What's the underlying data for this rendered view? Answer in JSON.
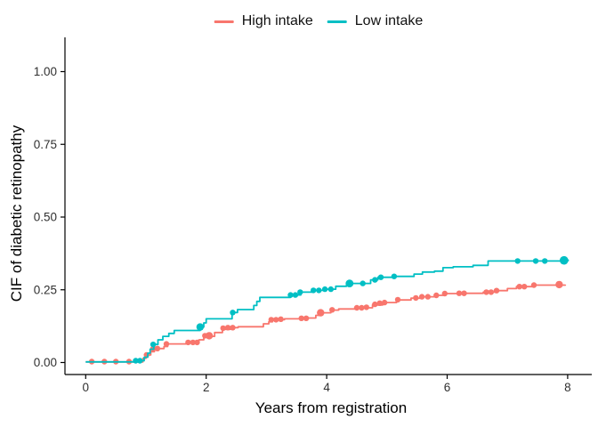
{
  "chart_data": {
    "type": "line",
    "subtype": "step-cif-curves",
    "title": "",
    "xlabel": "Years from registration",
    "ylabel": "CIF of diabetic retinopathy",
    "xlim": [
      0,
      8
    ],
    "ylim": [
      0,
      1
    ],
    "grid": false,
    "xticks": {
      "values": [
        0,
        2,
        4,
        6,
        8
      ],
      "labels": [
        "0",
        "2",
        "4",
        "6",
        "8"
      ]
    },
    "yticks": {
      "values": [
        0,
        0.25,
        0.5,
        0.75,
        1.0
      ],
      "labels": [
        "0.00",
        "0.25",
        "0.50",
        "0.75",
        "1.00"
      ]
    },
    "legend": {
      "position": "top",
      "entries": [
        {
          "label": "High intake",
          "color": "#F8766D"
        },
        {
          "label": "Low intake",
          "color": "#00BFC4"
        }
      ]
    },
    "axis_color": "#000000",
    "series": [
      {
        "name": "High intake",
        "color": "#F8766D",
        "steps": [
          [
            0.0,
            0.002
          ],
          [
            0.95,
            0.014
          ],
          [
            1.0,
            0.026
          ],
          [
            1.08,
            0.037
          ],
          [
            1.14,
            0.048
          ],
          [
            1.3,
            0.055
          ],
          [
            1.36,
            0.064
          ],
          [
            1.7,
            0.069
          ],
          [
            1.88,
            0.078
          ],
          [
            1.96,
            0.09
          ],
          [
            2.14,
            0.103
          ],
          [
            2.27,
            0.114
          ],
          [
            2.4,
            0.12
          ],
          [
            2.53,
            0.123
          ],
          [
            2.95,
            0.133
          ],
          [
            3.04,
            0.14
          ],
          [
            3.1,
            0.147
          ],
          [
            3.3,
            0.15
          ],
          [
            3.68,
            0.153
          ],
          [
            3.82,
            0.162
          ],
          [
            3.89,
            0.171
          ],
          [
            4.07,
            0.18
          ],
          [
            4.2,
            0.184
          ],
          [
            4.48,
            0.188
          ],
          [
            4.76,
            0.198
          ],
          [
            4.93,
            0.206
          ],
          [
            5.16,
            0.215
          ],
          [
            5.4,
            0.221
          ],
          [
            5.55,
            0.226
          ],
          [
            5.8,
            0.231
          ],
          [
            5.95,
            0.237
          ],
          [
            6.2,
            0.238
          ],
          [
            6.6,
            0.242
          ],
          [
            6.8,
            0.247
          ],
          [
            7.0,
            0.254
          ],
          [
            7.15,
            0.261
          ],
          [
            7.42,
            0.266
          ],
          [
            7.96,
            0.268
          ]
        ],
        "markers": [
          [
            0.1,
            0.003
          ],
          [
            0.31,
            0.003
          ],
          [
            0.5,
            0.003
          ],
          [
            0.72,
            0.003
          ],
          [
            1.01,
            0.026
          ],
          [
            1.12,
            0.048
          ],
          [
            1.19,
            0.048
          ],
          [
            1.34,
            0.064
          ],
          [
            1.7,
            0.069
          ],
          [
            1.78,
            0.069
          ],
          [
            1.85,
            0.069
          ],
          [
            1.98,
            0.092
          ],
          [
            2.05,
            0.092,
            4.2
          ],
          [
            2.28,
            0.118
          ],
          [
            2.36,
            0.12
          ],
          [
            2.44,
            0.12
          ],
          [
            3.08,
            0.147
          ],
          [
            3.16,
            0.147
          ],
          [
            3.24,
            0.149
          ],
          [
            3.58,
            0.152
          ],
          [
            3.66,
            0.152
          ],
          [
            3.9,
            0.171,
            4.2
          ],
          [
            4.09,
            0.181
          ],
          [
            4.5,
            0.188
          ],
          [
            4.58,
            0.188
          ],
          [
            4.66,
            0.19
          ],
          [
            4.8,
            0.2
          ],
          [
            4.88,
            0.204
          ],
          [
            4.96,
            0.206
          ],
          [
            5.18,
            0.216
          ],
          [
            5.48,
            0.222
          ],
          [
            5.58,
            0.226
          ],
          [
            5.68,
            0.226
          ],
          [
            5.82,
            0.231
          ],
          [
            5.96,
            0.237
          ],
          [
            6.2,
            0.238
          ],
          [
            6.28,
            0.238
          ],
          [
            6.65,
            0.242
          ],
          [
            6.73,
            0.242
          ],
          [
            6.82,
            0.247
          ],
          [
            7.2,
            0.261
          ],
          [
            7.28,
            0.261
          ],
          [
            7.44,
            0.266
          ],
          [
            7.86,
            0.268,
            4.2
          ]
        ]
      },
      {
        "name": "Low intake",
        "color": "#00BFC4",
        "steps": [
          [
            0.0,
            0.002
          ],
          [
            0.8,
            0.006
          ],
          [
            0.97,
            0.018
          ],
          [
            1.03,
            0.032
          ],
          [
            1.07,
            0.046
          ],
          [
            1.13,
            0.062
          ],
          [
            1.2,
            0.078
          ],
          [
            1.28,
            0.09
          ],
          [
            1.38,
            0.1
          ],
          [
            1.47,
            0.11
          ],
          [
            1.9,
            0.122
          ],
          [
            1.96,
            0.136
          ],
          [
            2.0,
            0.15
          ],
          [
            2.43,
            0.172
          ],
          [
            2.52,
            0.182
          ],
          [
            2.79,
            0.196
          ],
          [
            2.84,
            0.21
          ],
          [
            2.89,
            0.224
          ],
          [
            3.4,
            0.232
          ],
          [
            3.57,
            0.242
          ],
          [
            3.76,
            0.248
          ],
          [
            3.95,
            0.252
          ],
          [
            4.15,
            0.262
          ],
          [
            4.33,
            0.272
          ],
          [
            4.73,
            0.284
          ],
          [
            4.85,
            0.293
          ],
          [
            5.1,
            0.296
          ],
          [
            5.45,
            0.304
          ],
          [
            5.59,
            0.311
          ],
          [
            5.79,
            0.314
          ],
          [
            5.93,
            0.326
          ],
          [
            6.1,
            0.329
          ],
          [
            6.43,
            0.334
          ],
          [
            6.68,
            0.349
          ],
          [
            7.9,
            0.351
          ],
          [
            8.02,
            0.351
          ]
        ],
        "markers": [
          [
            0.83,
            0.006
          ],
          [
            0.9,
            0.006
          ],
          [
            1.12,
            0.062
          ],
          [
            1.9,
            0.122,
            4.2
          ],
          [
            2.44,
            0.172
          ],
          [
            3.4,
            0.232
          ],
          [
            3.48,
            0.232
          ],
          [
            3.56,
            0.242
          ],
          [
            3.78,
            0.248
          ],
          [
            3.87,
            0.248
          ],
          [
            3.97,
            0.252
          ],
          [
            4.07,
            0.252
          ],
          [
            4.38,
            0.272,
            4.4
          ],
          [
            4.6,
            0.272
          ],
          [
            4.8,
            0.284
          ],
          [
            4.9,
            0.293
          ],
          [
            5.12,
            0.296
          ],
          [
            7.17,
            0.349
          ],
          [
            7.47,
            0.349
          ],
          [
            7.62,
            0.349
          ],
          [
            7.94,
            0.351,
            4.8
          ]
        ]
      }
    ]
  }
}
